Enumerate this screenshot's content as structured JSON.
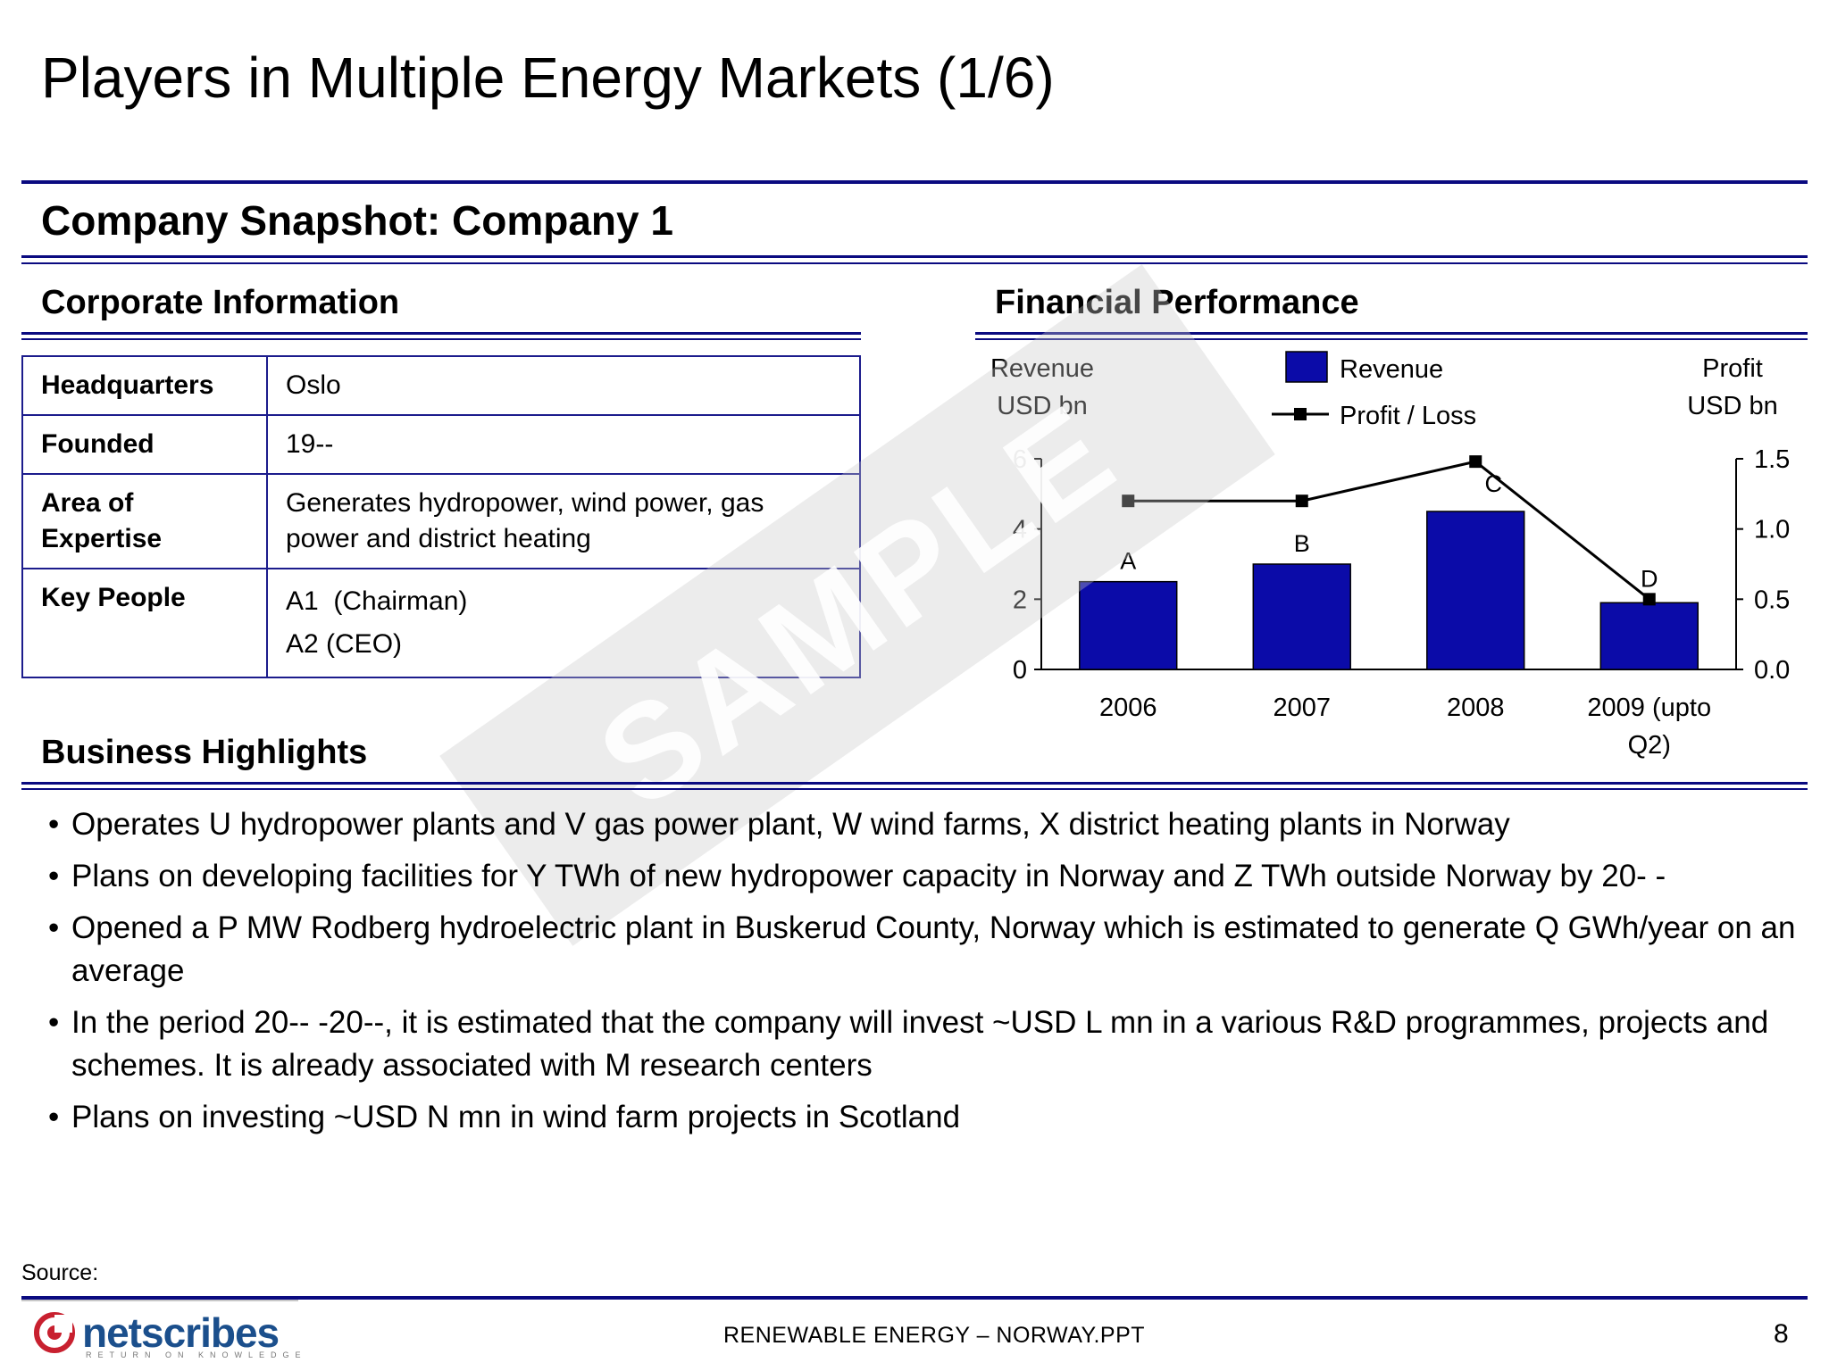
{
  "page": {
    "title": "Players in Multiple Energy Markets (1/6)",
    "section_title": "Company Snapshot: Company 1",
    "watermark": "SAMPLE"
  },
  "corporate": {
    "heading": "Corporate Information",
    "rows": [
      {
        "label": "Headquarters",
        "value": "Oslo"
      },
      {
        "label": "Founded",
        "value": "19--"
      },
      {
        "label": "Area of Expertise",
        "value": "Generates hydropower, wind power, gas power and district heating"
      },
      {
        "label": "Key People",
        "values": [
          "A1  (Chairman)",
          "A2 (CEO)"
        ]
      }
    ]
  },
  "financial": {
    "heading": "Financial Performance"
  },
  "chart_data": {
    "type": "bar",
    "categories": [
      "2006",
      "2007",
      "2008",
      "2009 (upto Q2)"
    ],
    "y_left_label": [
      "Revenue",
      "USD bn"
    ],
    "y_right_label": [
      "Profit",
      "USD bn"
    ],
    "ylim_left": [
      0,
      6
    ],
    "yticks_left": [
      "0",
      "2",
      "4",
      "6"
    ],
    "ylim_right": [
      0,
      1.5
    ],
    "yticks_right": [
      "0.0",
      "0.5",
      "1.0",
      "1.5"
    ],
    "legend": [
      "Revenue",
      "Profit / Loss"
    ],
    "series": [
      {
        "name": "Revenue",
        "type": "bar",
        "axis": "left",
        "values": [
          2.5,
          3.0,
          4.5,
          1.9
        ],
        "color": "#0b0ba8"
      },
      {
        "name": "Profit / Loss",
        "type": "line",
        "axis": "right",
        "values": [
          1.2,
          1.2,
          1.48,
          0.5
        ],
        "color": "#000000"
      }
    ],
    "point_labels": [
      "A",
      "B",
      "C",
      "D"
    ],
    "grid": false
  },
  "highlights": {
    "heading": "Business Highlights",
    "items": [
      "Operates U hydropower plants and V gas power plant, W wind farms, X district heating plants in Norway",
      "Plans on developing facilities for Y TWh of new hydropower capacity in Norway and Z TWh outside Norway by 20- -",
      "Opened a P MW Rodberg hydroelectric plant in Buskerud County, Norway which is estimated to generate Q GWh/year on an average",
      "In the period 20-- -20--, it is estimated that the company will invest ~USD L mn in a various R&D programmes, projects and schemes. It is already associated with M research centers",
      "Plans on investing ~USD N mn in wind farm projects in Scotland"
    ]
  },
  "footer": {
    "source": "Source:",
    "center": "RENEWABLE ENERGY – NORWAY.PPT",
    "page_number": "8",
    "logo_text": "netscribes",
    "logo_tagline": "RETURN ON KNOWLEDGE"
  },
  "colors": {
    "navy_rule": "#0a0a80",
    "bar": "#0b0ba8",
    "logo": "#1b4f8c",
    "logo_icon": "#c8202f"
  }
}
